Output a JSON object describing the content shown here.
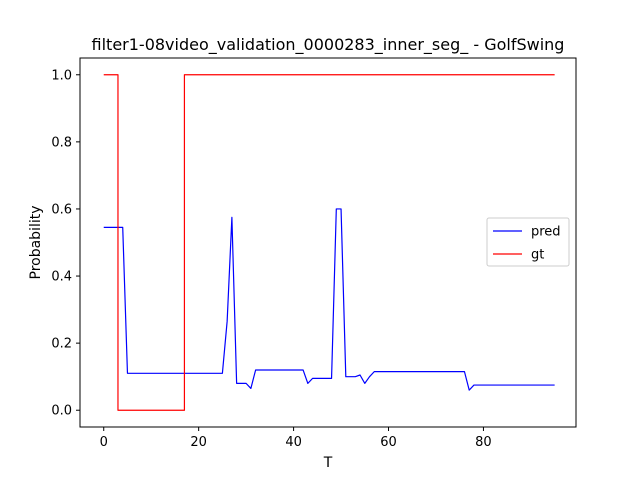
{
  "chart_data": {
    "type": "line",
    "title": "filter1-08video_validation_0000283_inner_seg_ - GolfSwing",
    "xlabel": "T",
    "ylabel": "Probability",
    "xlim": [
      -5,
      99.5
    ],
    "ylim": [
      -0.05,
      1.05
    ],
    "xticks": [
      0,
      20,
      40,
      60,
      80
    ],
    "xtick_labels": [
      "0",
      "20",
      "40",
      "60",
      "80"
    ],
    "yticks": [
      0.0,
      0.2,
      0.4,
      0.6,
      0.8,
      1.0
    ],
    "ytick_labels": [
      "0.0",
      "0.2",
      "0.4",
      "0.6",
      "0.8",
      "1.0"
    ],
    "grid": false,
    "legend_position": "center-right",
    "series": [
      {
        "name": "pred",
        "color": "#0000ff",
        "step": false,
        "x": [
          0,
          1,
          2,
          3,
          4,
          5,
          6,
          7,
          8,
          9,
          10,
          11,
          12,
          13,
          14,
          15,
          16,
          17,
          18,
          19,
          20,
          21,
          22,
          23,
          24,
          25,
          26,
          27,
          28,
          29,
          30,
          31,
          32,
          33,
          34,
          35,
          36,
          37,
          38,
          39,
          40,
          41,
          42,
          43,
          44,
          45,
          46,
          47,
          48,
          49,
          50,
          51,
          52,
          53,
          54,
          55,
          56,
          57,
          58,
          59,
          60,
          61,
          62,
          63,
          64,
          65,
          66,
          67,
          68,
          69,
          70,
          71,
          72,
          73,
          74,
          75,
          76,
          77,
          78,
          79,
          80,
          81,
          82,
          83,
          84,
          85,
          86,
          87,
          88,
          89,
          90,
          91,
          92,
          93,
          94,
          95
        ],
        "values": [
          0.545,
          0.545,
          0.545,
          0.545,
          0.545,
          0.11,
          0.11,
          0.11,
          0.11,
          0.11,
          0.11,
          0.11,
          0.11,
          0.11,
          0.11,
          0.11,
          0.11,
          0.11,
          0.11,
          0.11,
          0.11,
          0.11,
          0.11,
          0.11,
          0.11,
          0.11,
          0.265,
          0.575,
          0.08,
          0.08,
          0.08,
          0.065,
          0.12,
          0.12,
          0.12,
          0.12,
          0.12,
          0.12,
          0.12,
          0.12,
          0.12,
          0.12,
          0.12,
          0.08,
          0.095,
          0.095,
          0.095,
          0.095,
          0.095,
          0.6,
          0.6,
          0.1,
          0.1,
          0.1,
          0.105,
          0.08,
          0.1,
          0.115,
          0.115,
          0.115,
          0.115,
          0.115,
          0.115,
          0.115,
          0.115,
          0.115,
          0.115,
          0.115,
          0.115,
          0.115,
          0.115,
          0.115,
          0.115,
          0.115,
          0.115,
          0.115,
          0.115,
          0.06,
          0.075,
          0.075,
          0.075,
          0.075,
          0.075,
          0.075,
          0.075,
          0.075,
          0.075,
          0.075,
          0.075,
          0.075,
          0.075,
          0.075,
          0.075,
          0.075,
          0.075,
          0.075
        ]
      },
      {
        "name": "gt",
        "color": "#ff0000",
        "step": true,
        "x": [
          0,
          3,
          3,
          17,
          17,
          95
        ],
        "values": [
          1.0,
          1.0,
          0.0,
          0.0,
          1.0,
          1.0
        ]
      }
    ]
  }
}
